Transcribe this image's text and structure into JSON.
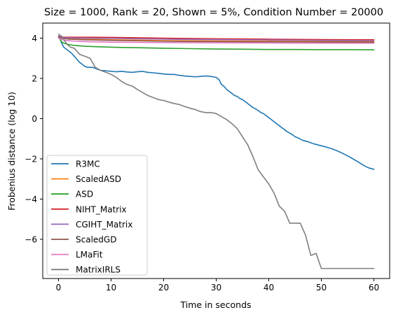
{
  "chart_data": {
    "type": "line",
    "title": "Size = 1000, Rank = 20, Shown = 5%, Condition Number = 20000",
    "xlabel": "Time in seconds",
    "ylabel": "Frobenius distance (log 10)",
    "xlim": [
      -3,
      63
    ],
    "ylim": [
      -7.95,
      4.75
    ],
    "xticks": [
      0,
      10,
      20,
      30,
      40,
      50,
      60
    ],
    "yticks": [
      -6,
      -4,
      -2,
      0,
      2,
      4
    ],
    "grid": false,
    "legend": "lower-left",
    "series": [
      {
        "name": "R3MC",
        "color": "#1f77b4",
        "x": [
          0,
          0.3,
          0.6,
          1,
          1.5,
          2,
          2.5,
          3,
          3.5,
          4,
          4.5,
          5,
          5.5,
          6,
          6.5,
          7,
          7.5,
          8,
          9,
          10,
          11,
          12,
          13,
          14,
          15,
          16,
          17,
          18,
          19,
          20,
          21,
          22,
          23,
          24,
          25,
          26,
          27,
          28,
          29,
          30,
          30.5,
          31,
          31.5,
          32,
          32.5,
          33,
          33.5,
          34,
          34.5,
          35,
          35.5,
          36,
          36.5,
          37,
          37.5,
          38,
          38.5,
          39,
          39.5,
          40,
          40.5,
          41,
          41.5,
          42,
          42.5,
          43,
          43.5,
          44,
          44.5,
          45,
          45.5,
          46,
          46.5,
          47,
          47.5,
          48,
          48.5,
          49,
          49.5,
          50,
          51,
          52,
          53,
          54,
          55,
          56,
          57,
          58,
          59,
          60
        ],
        "y": [
          4.1,
          3.95,
          3.75,
          3.55,
          3.45,
          3.35,
          3.25,
          3.1,
          2.95,
          2.8,
          2.7,
          2.6,
          2.55,
          2.55,
          2.55,
          2.5,
          2.45,
          2.4,
          2.38,
          2.35,
          2.33,
          2.35,
          2.32,
          2.3,
          2.33,
          2.35,
          2.3,
          2.28,
          2.25,
          2.22,
          2.2,
          2.2,
          2.15,
          2.12,
          2.1,
          2.08,
          2.1,
          2.12,
          2.1,
          2.05,
          1.95,
          1.7,
          1.6,
          1.45,
          1.35,
          1.25,
          1.15,
          1.1,
          1.0,
          0.95,
          0.85,
          0.75,
          0.65,
          0.55,
          0.48,
          0.4,
          0.3,
          0.25,
          0.15,
          0.05,
          -0.05,
          -0.15,
          -0.25,
          -0.35,
          -0.45,
          -0.55,
          -0.65,
          -0.72,
          -0.8,
          -0.9,
          -0.95,
          -1.02,
          -1.08,
          -1.12,
          -1.15,
          -1.2,
          -1.25,
          -1.28,
          -1.32,
          -1.35,
          -1.42,
          -1.5,
          -1.6,
          -1.72,
          -1.85,
          -2.0,
          -2.15,
          -2.32,
          -2.45,
          -2.52
        ]
      },
      {
        "name": "ScaledASD",
        "color": "#ff7f0e",
        "x": [
          0,
          2,
          5,
          10,
          20,
          30,
          40,
          50,
          60
        ],
        "y": [
          4.05,
          3.98,
          3.95,
          3.92,
          3.88,
          3.86,
          3.85,
          3.84,
          3.83
        ]
      },
      {
        "name": "ASD",
        "color": "#2ca02c",
        "x": [
          0,
          0.5,
          1,
          2,
          3,
          5,
          8,
          12,
          16,
          20,
          25,
          30,
          35,
          40,
          45,
          50,
          55,
          60
        ],
        "y": [
          4.1,
          3.85,
          3.75,
          3.68,
          3.64,
          3.6,
          3.57,
          3.54,
          3.52,
          3.5,
          3.48,
          3.46,
          3.45,
          3.44,
          3.44,
          3.43,
          3.43,
          3.42
        ]
      },
      {
        "name": "NIHT_Matrix",
        "color": "#d62728",
        "x": [
          0,
          1,
          3,
          6,
          10,
          15,
          20,
          30,
          40,
          50,
          60
        ],
        "y": [
          4.1,
          4.05,
          4.05,
          4.05,
          4.04,
          4.02,
          4.0,
          3.97,
          3.95,
          3.93,
          3.92
        ]
      },
      {
        "name": "CGIHT_Matrix",
        "color": "#9467bd",
        "x": [
          0,
          1,
          3,
          6,
          10,
          15,
          20,
          30,
          40,
          50,
          60
        ],
        "y": [
          4.08,
          4.02,
          4.01,
          4.0,
          3.99,
          3.97,
          3.95,
          3.93,
          3.91,
          3.89,
          3.88
        ]
      },
      {
        "name": "ScaledGD",
        "color": "#8c564b",
        "x": [
          0,
          2,
          5,
          10,
          20,
          30,
          40,
          50,
          60
        ],
        "y": [
          4.02,
          3.95,
          3.92,
          3.89,
          3.85,
          3.83,
          3.82,
          3.81,
          3.8
        ]
      },
      {
        "name": "LMaFit",
        "color": "#e377c2",
        "x": [
          0,
          1,
          3,
          6,
          10,
          20,
          30,
          40,
          50,
          60
        ],
        "y": [
          4.0,
          3.9,
          3.85,
          3.82,
          3.8,
          3.78,
          3.77,
          3.76,
          3.75,
          3.75
        ]
      },
      {
        "name": "MatrixIRLS",
        "color": "#7f7f7f",
        "x": [
          0,
          0.3,
          0.8,
          1.2,
          1.8,
          2.3,
          3,
          3.5,
          4,
          4.5,
          5,
          6,
          7,
          8,
          9,
          10,
          11,
          12,
          13,
          14,
          15,
          16,
          17,
          18,
          19,
          20,
          21,
          22,
          23,
          24,
          25,
          26,
          27,
          28,
          29,
          30,
          31,
          32,
          33,
          34,
          35,
          36,
          37,
          38,
          39,
          40,
          41,
          42,
          43,
          44,
          45,
          46,
          47,
          48,
          49,
          50,
          51,
          52,
          53,
          54,
          55,
          56,
          57,
          58,
          59,
          60
        ],
        "y": [
          4.2,
          4.15,
          4.05,
          3.85,
          3.65,
          3.55,
          3.5,
          3.35,
          3.2,
          3.15,
          3.1,
          3.0,
          2.55,
          2.4,
          2.3,
          2.2,
          2.05,
          1.85,
          1.7,
          1.62,
          1.45,
          1.3,
          1.15,
          1.05,
          0.95,
          0.9,
          0.82,
          0.75,
          0.7,
          0.6,
          0.52,
          0.45,
          0.35,
          0.3,
          0.3,
          0.25,
          0.1,
          -0.05,
          -0.25,
          -0.5,
          -0.9,
          -1.3,
          -1.9,
          -2.55,
          -2.9,
          -3.25,
          -3.7,
          -4.35,
          -4.6,
          -5.2,
          -5.2,
          -5.2,
          -5.8,
          -6.8,
          -6.7,
          -7.45,
          -7.45,
          -7.45,
          -7.45,
          -7.45,
          -7.45,
          -7.45,
          -7.45,
          -7.45,
          -7.45,
          -7.45
        ]
      }
    ]
  }
}
